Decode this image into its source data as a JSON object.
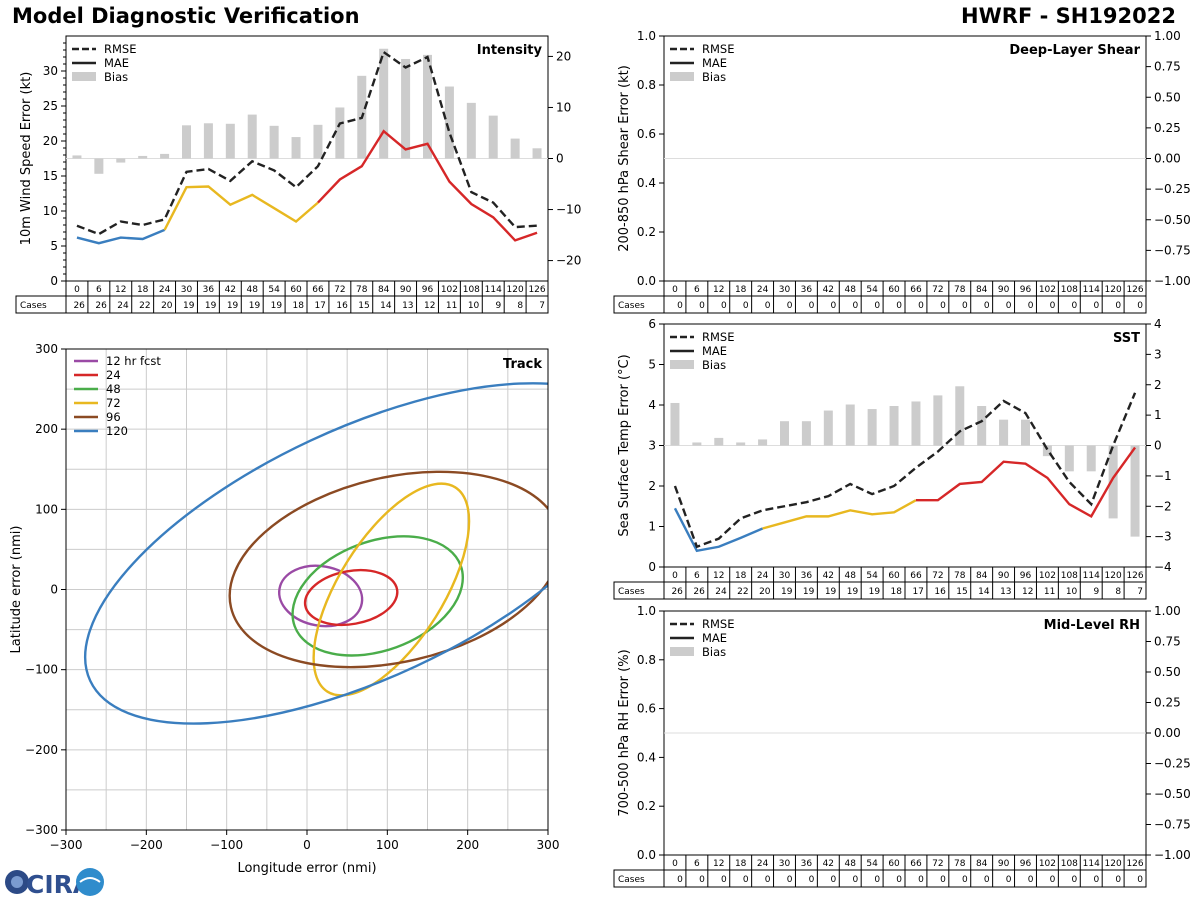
{
  "header": {
    "title": "Model Diagnostic Verification",
    "model_id": "HWRF - SH192022"
  },
  "logo": {
    "text": "CIRA"
  },
  "legend": {
    "rmse": "RMSE",
    "mae": "MAE",
    "bias": "Bias"
  },
  "colors": {
    "rmse": "#222222",
    "early": "#3a7ebf",
    "mid": "#e8b820",
    "late": "#d62728",
    "bias": "#cccccc",
    "grid": "#cccccc",
    "track_12": "#9a4aa5",
    "track_24": "#d62728",
    "track_48": "#4aad4a",
    "track_72": "#e8b820",
    "track_96": "#8b4a23",
    "track_120": "#3a7ebf"
  },
  "chart_data": [
    {
      "id": "intensity",
      "type": "line",
      "title": "Intensity",
      "ylabel": "10m Wind Speed Error (kt)",
      "ylim": [
        0,
        35
      ],
      "yticks": [
        0,
        5,
        10,
        15,
        20,
        25,
        30
      ],
      "y2lim": [
        -24,
        24
      ],
      "y2ticks": [
        -20,
        -10,
        0,
        10,
        20
      ],
      "hours": [
        0,
        6,
        12,
        18,
        24,
        30,
        36,
        42,
        48,
        54,
        60,
        66,
        72,
        78,
        84,
        90,
        96,
        102,
        108,
        114,
        120,
        126
      ],
      "cases_label": "Cases",
      "cases": [
        26,
        26,
        24,
        22,
        20,
        19,
        19,
        19,
        19,
        19,
        18,
        17,
        16,
        15,
        14,
        13,
        12,
        11,
        10,
        9,
        8,
        7
      ],
      "rmse": [
        7.9,
        6.7,
        8.5,
        8.0,
        8.8,
        15.6,
        16.0,
        14.3,
        17.1,
        15.8,
        13.4,
        16.4,
        22.5,
        23.3,
        32.7,
        30.5,
        32.0,
        21.2,
        12.7,
        11.2,
        7.7,
        7.9
      ],
      "mae": [
        6.2,
        5.4,
        6.2,
        6.0,
        7.3,
        13.4,
        13.5,
        10.9,
        12.3,
        10.4,
        8.5,
        11.2,
        14.5,
        16.4,
        21.4,
        18.8,
        19.6,
        14.2,
        11.0,
        9.1,
        5.8,
        6.9
      ],
      "bias": [
        0.6,
        -3.0,
        -0.8,
        0.5,
        0.9,
        6.5,
        6.9,
        6.8,
        8.6,
        6.4,
        4.2,
        6.6,
        10.0,
        16.2,
        21.5,
        19.5,
        20.3,
        14.1,
        10.9,
        8.4,
        3.9,
        2.0
      ]
    },
    {
      "id": "shear",
      "type": "line",
      "title": "Deep-Layer Shear",
      "ylabel": "200-850 hPa Shear Error (kt)",
      "ylim": [
        0,
        1
      ],
      "yticks": [
        "0.0",
        "0.2",
        "0.4",
        "0.6",
        "0.8",
        "1.0"
      ],
      "y2lim": [
        -1,
        1
      ],
      "y2ticks": [
        "−1.00",
        "−0.75",
        "−0.50",
        "−0.25",
        "0.00",
        "0.25",
        "0.50",
        "0.75",
        "1.00"
      ],
      "hours": [
        0,
        6,
        12,
        18,
        24,
        30,
        36,
        42,
        48,
        54,
        60,
        66,
        72,
        78,
        84,
        90,
        96,
        102,
        108,
        114,
        120,
        126
      ],
      "cases_label": "Cases",
      "cases": [
        0,
        0,
        0,
        0,
        0,
        0,
        0,
        0,
        0,
        0,
        0,
        0,
        0,
        0,
        0,
        0,
        0,
        0,
        0,
        0,
        0,
        0
      ],
      "rmse": [],
      "mae": [],
      "bias": []
    },
    {
      "id": "sst",
      "type": "line",
      "title": "SST",
      "ylabel": "Sea Surface Temp Error (°C)",
      "ylim": [
        0,
        6
      ],
      "yticks": [
        0,
        1,
        2,
        3,
        4,
        5,
        6
      ],
      "y2lim": [
        -4,
        4
      ],
      "y2ticks": [
        -4,
        -3,
        -2,
        -1,
        0,
        1,
        2,
        3,
        4
      ],
      "hours": [
        0,
        6,
        12,
        18,
        24,
        30,
        36,
        42,
        48,
        54,
        60,
        66,
        72,
        78,
        84,
        90,
        96,
        102,
        108,
        114,
        120,
        126
      ],
      "cases_label": "Cases",
      "cases": [
        26,
        26,
        24,
        22,
        20,
        19,
        19,
        19,
        19,
        19,
        18,
        17,
        16,
        15,
        14,
        13,
        12,
        11,
        10,
        9,
        8,
        7
      ],
      "rmse": [
        2.0,
        0.5,
        0.7,
        1.2,
        1.4,
        1.5,
        1.6,
        1.75,
        2.05,
        1.8,
        2.0,
        2.45,
        2.85,
        3.35,
        3.6,
        4.1,
        3.8,
        2.9,
        2.1,
        1.55,
        3.0,
        4.3
      ],
      "mae": [
        1.45,
        0.4,
        0.5,
        0.72,
        0.95,
        1.1,
        1.25,
        1.25,
        1.4,
        1.3,
        1.35,
        1.65,
        1.65,
        2.05,
        2.1,
        2.6,
        2.55,
        2.2,
        1.55,
        1.25,
        2.2,
        2.95
      ],
      "bias": [
        1.4,
        0.1,
        0.25,
        0.1,
        0.2,
        0.8,
        0.8,
        1.15,
        1.35,
        1.2,
        1.3,
        1.45,
        1.65,
        1.95,
        1.3,
        0.85,
        0.85,
        -0.35,
        -0.85,
        -0.85,
        -2.4,
        -3.0
      ]
    },
    {
      "id": "rh",
      "type": "line",
      "title": "Mid-Level RH",
      "ylabel": "700-500 hPa RH Error (%)",
      "ylim": [
        0,
        1
      ],
      "yticks": [
        "0.0",
        "0.2",
        "0.4",
        "0.6",
        "0.8",
        "1.0"
      ],
      "y2lim": [
        -1,
        1
      ],
      "y2ticks": [
        "−1.00",
        "−0.75",
        "−0.50",
        "−0.25",
        "0.00",
        "0.25",
        "0.50",
        "0.75",
        "1.00"
      ],
      "hours": [
        0,
        6,
        12,
        18,
        24,
        30,
        36,
        42,
        48,
        54,
        60,
        66,
        72,
        78,
        84,
        90,
        96,
        102,
        108,
        114,
        120,
        126
      ],
      "cases_label": "Cases",
      "cases": [
        0,
        0,
        0,
        0,
        0,
        0,
        0,
        0,
        0,
        0,
        0,
        0,
        0,
        0,
        0,
        0,
        0,
        0,
        0,
        0,
        0,
        0
      ],
      "rmse": [],
      "mae": [],
      "bias": []
    },
    {
      "id": "track",
      "type": "scatter",
      "title": "Track",
      "xlabel": "Longitude error (nmi)",
      "ylabel": "Latitude error (nmi)",
      "xlim": [
        -300,
        300
      ],
      "ylim": [
        -300,
        300
      ],
      "ticks": [
        -300,
        -200,
        -100,
        0,
        100,
        200,
        300
      ],
      "ellipses": [
        {
          "label": "12 hr fcst",
          "color_key": "track_12",
          "cx": 17,
          "cy": -8,
          "rx": 52,
          "ry": 37,
          "angle": -10
        },
        {
          "label": "24",
          "color_key": "track_24",
          "cx": 55,
          "cy": -10,
          "rx": 58,
          "ry": 33,
          "angle": 10
        },
        {
          "label": "48",
          "color_key": "track_48",
          "cx": 88,
          "cy": -8,
          "rx": 110,
          "ry": 68,
          "angle": 20
        },
        {
          "label": "72",
          "color_key": "track_72",
          "cx": 105,
          "cy": 0,
          "rx": 150,
          "ry": 65,
          "angle": 58
        },
        {
          "label": "96",
          "color_key": "track_96",
          "cx": 110,
          "cy": 25,
          "rx": 210,
          "ry": 115,
          "angle": 13
        },
        {
          "label": "120",
          "color_key": "track_120",
          "cx": 70,
          "cy": 45,
          "rx": 375,
          "ry": 155,
          "angle": 25
        }
      ]
    }
  ]
}
